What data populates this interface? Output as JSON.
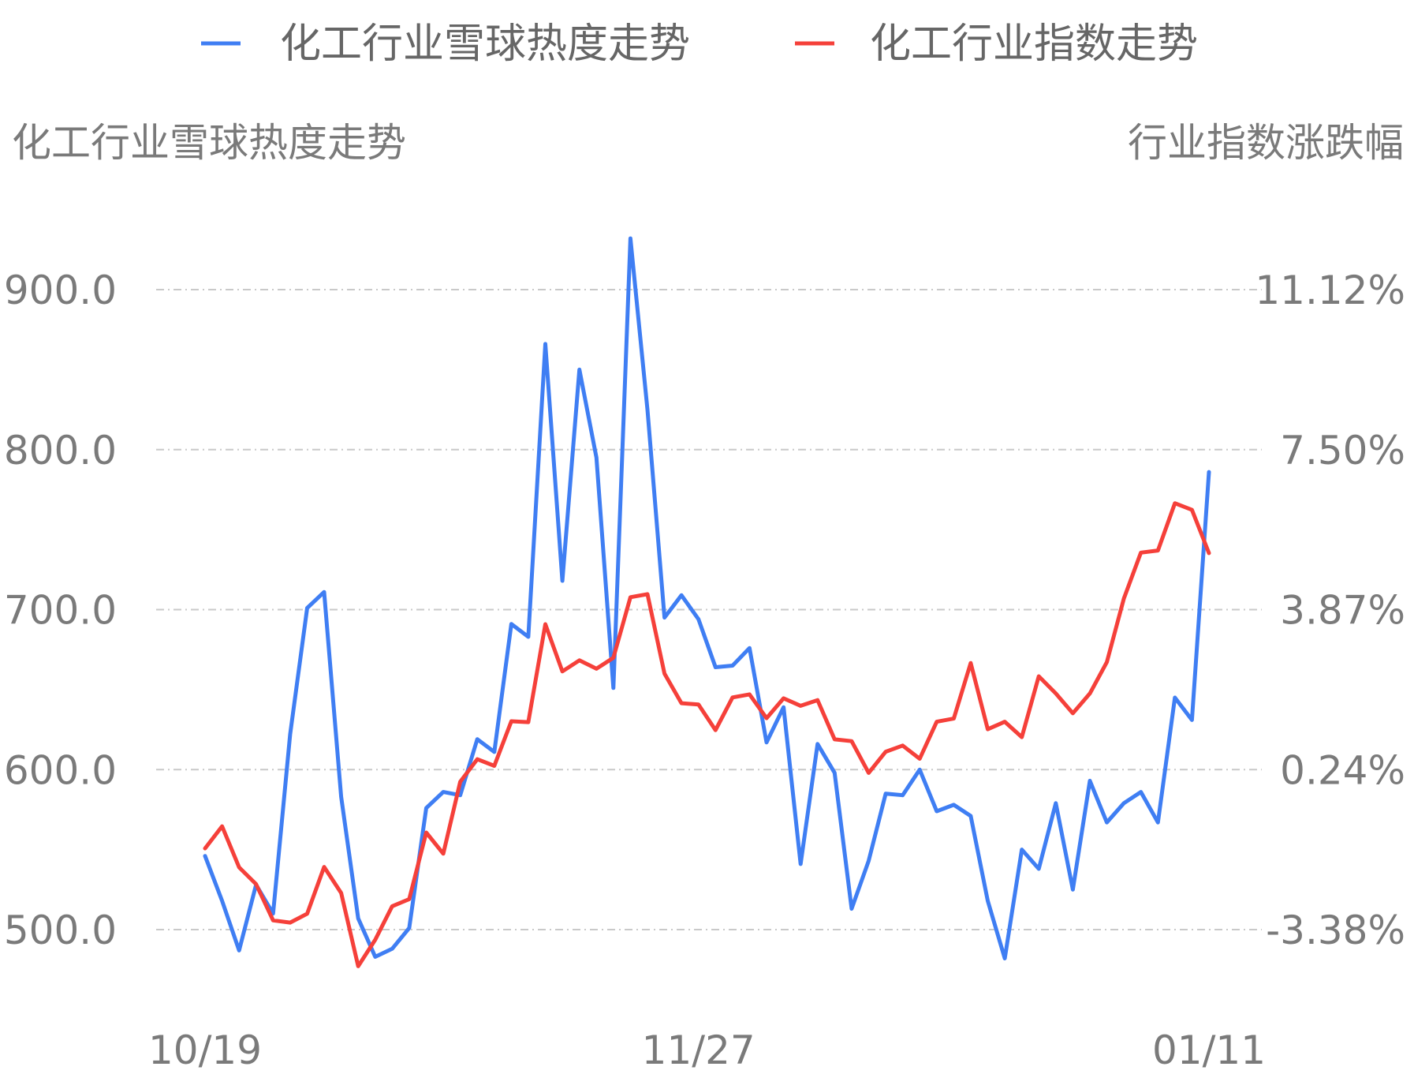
{
  "chart_data": {
    "type": "line",
    "legend_position": "top-center",
    "grid": true,
    "left_axis_title": "化工行业雪球热度走势",
    "right_axis_title": "行业指数涨跌幅",
    "left_ticks": [
      "900.0",
      "800.0",
      "700.0",
      "600.0",
      "500.0"
    ],
    "right_ticks": [
      "11.12%",
      "7.50%",
      "3.87%",
      "0.24%",
      "-3.38%"
    ],
    "x_tick_labels": [
      {
        "index": 0,
        "label": "10/19"
      },
      {
        "index": 29,
        "label": "11/27"
      },
      {
        "index": 59,
        "label": "01/11"
      }
    ],
    "left_range": [
      500,
      900
    ],
    "right_range": [
      -3.38,
      11.12
    ],
    "series": [
      {
        "name": "化工行业雪球热度走势",
        "axis": "left",
        "color": "#3f7ef3",
        "values": [
          546,
          518,
          487,
          528,
          510,
          622,
          701,
          711,
          583,
          507,
          483,
          488,
          501,
          576,
          586,
          584,
          619,
          611,
          691,
          683,
          866,
          718,
          850,
          795,
          651,
          932,
          825,
          695,
          709,
          694,
          664,
          665,
          676,
          617,
          639,
          541,
          616,
          598,
          513,
          543,
          585,
          584,
          600,
          574,
          578,
          571,
          518,
          482,
          550,
          538,
          579,
          525,
          593,
          567,
          579,
          586,
          567,
          645,
          631,
          786
        ]
      },
      {
        "name": "化工行业指数走势",
        "axis": "right",
        "color": "#f5403a",
        "values": [
          -1.54,
          -1.04,
          -1.97,
          -2.35,
          -3.17,
          -3.22,
          -3.02,
          -1.96,
          -2.55,
          -4.21,
          -3.61,
          -2.85,
          -2.69,
          -1.18,
          -1.66,
          -0.03,
          0.48,
          0.33,
          1.34,
          1.32,
          3.54,
          2.47,
          2.72,
          2.53,
          2.78,
          4.15,
          4.22,
          2.42,
          1.75,
          1.72,
          1.14,
          1.88,
          1.95,
          1.41,
          1.86,
          1.69,
          1.82,
          0.93,
          0.89,
          0.17,
          0.65,
          0.79,
          0.49,
          1.33,
          1.4,
          2.66,
          1.16,
          1.33,
          0.98,
          2.36,
          1.97,
          1.52,
          1.97,
          2.68,
          4.12,
          5.16,
          5.21,
          6.28,
          6.13,
          5.15
        ]
      }
    ]
  }
}
